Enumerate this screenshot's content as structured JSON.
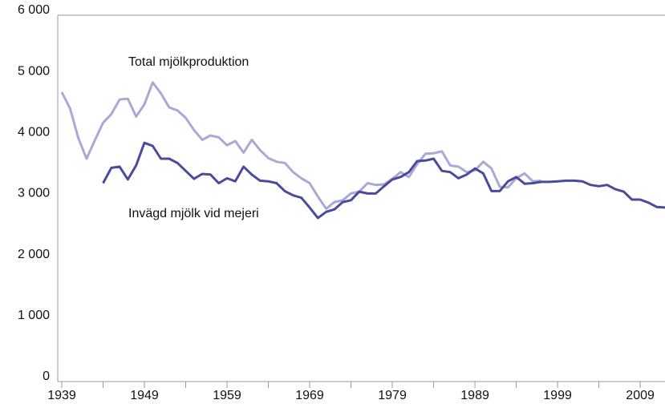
{
  "chart_data": {
    "type": "line",
    "x": [
      1939,
      1940,
      1941,
      1942,
      1943,
      1944,
      1945,
      1946,
      1947,
      1948,
      1949,
      1950,
      1951,
      1952,
      1953,
      1954,
      1955,
      1956,
      1957,
      1958,
      1959,
      1960,
      1961,
      1962,
      1963,
      1964,
      1965,
      1966,
      1967,
      1968,
      1969,
      1970,
      1971,
      1972,
      1973,
      1974,
      1975,
      1976,
      1977,
      1978,
      1979,
      1980,
      1981,
      1982,
      1983,
      1984,
      1985,
      1986,
      1987,
      1988,
      1989,
      1990,
      1991,
      1992,
      1993,
      1994,
      1995,
      1996,
      1997,
      1998,
      1999,
      2000,
      2001,
      2002,
      2003,
      2004,
      2005,
      2006,
      2007,
      2008,
      2009,
      2010,
      2011,
      2012
    ],
    "series": [
      {
        "name": "Total mjölkproduktion",
        "color": "#a9a9d6",
        "values": [
          4740,
          4475,
          3990,
          3650,
          3950,
          4240,
          4380,
          4620,
          4630,
          4340,
          4540,
          4900,
          4720,
          4490,
          4440,
          4320,
          4120,
          3960,
          4030,
          4000,
          3870,
          3940,
          3750,
          3960,
          3790,
          3660,
          3600,
          3580,
          3430,
          3330,
          3250,
          3030,
          2830,
          2940,
          2970,
          3080,
          3110,
          3250,
          3220,
          3230,
          3320,
          3430,
          3350,
          3560,
          3730,
          3740,
          3770,
          3540,
          3520,
          3430,
          3460,
          3600,
          3490,
          3190,
          3180,
          3330,
          3410,
          3280,
          3290,
          null,
          null,
          null,
          null,
          null,
          null,
          null,
          null,
          null,
          null,
          null,
          null,
          null,
          null,
          null
        ]
      },
      {
        "name": "Invägd mjölk vid mejeri",
        "color": "#4b4b9c",
        "values": [
          null,
          null,
          null,
          null,
          null,
          3250,
          3500,
          3520,
          3310,
          3540,
          3910,
          3860,
          3650,
          3650,
          3580,
          3450,
          3320,
          3400,
          3390,
          3250,
          3330,
          3280,
          3520,
          3390,
          3290,
          3280,
          3250,
          3120,
          3050,
          3010,
          2850,
          2680,
          2780,
          2820,
          2940,
          2970,
          3110,
          3080,
          3080,
          3200,
          3310,
          3350,
          3430,
          3610,
          3620,
          3650,
          3450,
          3430,
          3330,
          3390,
          3490,
          3410,
          3120,
          3120,
          3280,
          3350,
          3240,
          3250,
          3270,
          3270,
          3280,
          3290,
          3290,
          3280,
          3220,
          3200,
          3220,
          3150,
          3110,
          2980,
          2980,
          2930,
          2860,
          2850
        ]
      }
    ],
    "xlim": [
      1939,
      2012
    ],
    "xticks": [
      1939,
      1949,
      1959,
      1969,
      1979,
      1989,
      1999,
      2009
    ],
    "xminor": [
      1944,
      1954,
      1964,
      1974,
      1984,
      1994,
      2004
    ],
    "ylim": [
      0,
      6000
    ],
    "yticks": [
      0,
      {
        "value": 1000,
        "label": "1 000"
      },
      {
        "value": 2000,
        "label": "2 000"
      },
      {
        "value": 3000,
        "label": "3 000"
      },
      {
        "value": 4000,
        "label": "4 000"
      },
      {
        "value": 5000,
        "label": "5 000"
      },
      {
        "value": 6000,
        "label": "6 000"
      }
    ]
  }
}
